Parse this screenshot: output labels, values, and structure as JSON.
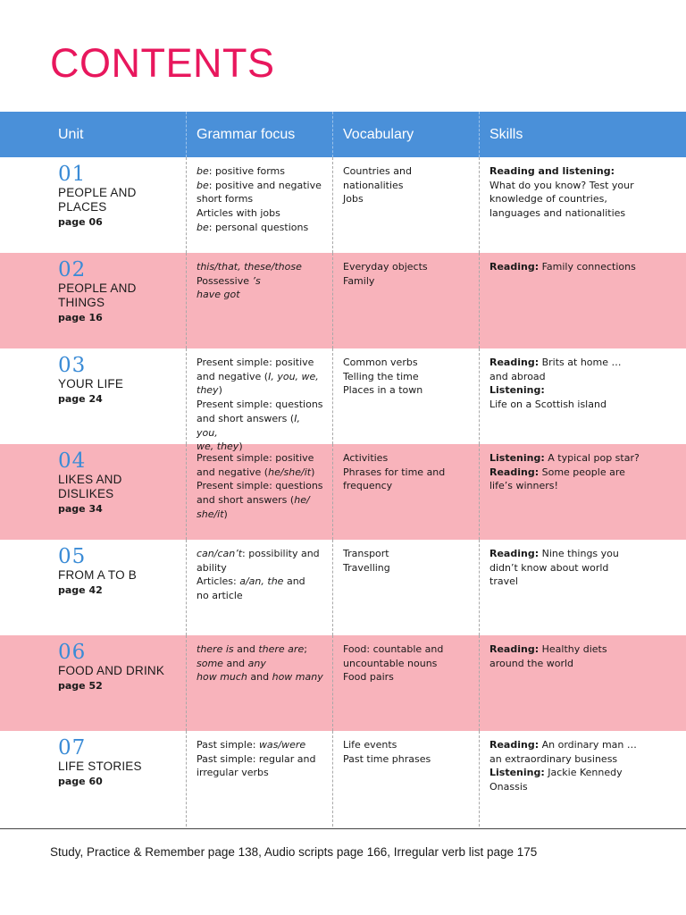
{
  "title": "CONTENTS",
  "colors": {
    "title": "#e8175d",
    "header": "#4a90d9",
    "pink_row": "#f8b3bb",
    "unit_number": "#3a8bd6"
  },
  "headers": {
    "unit": "Unit",
    "grammar": "Grammar focus",
    "vocabulary": "Vocabulary",
    "skills": "Skills"
  },
  "units": [
    {
      "number": "01",
      "name": "PEOPLE AND PLACES",
      "page": "page 06",
      "pink": false,
      "grammar": [
        [
          {
            "t": "be",
            "i": true
          },
          {
            "t": ": positive forms"
          }
        ],
        [
          {
            "t": "be",
            "i": true
          },
          {
            "t": ": positive and negative"
          }
        ],
        [
          {
            "t": "short forms"
          }
        ],
        [
          {
            "t": "Articles with jobs"
          }
        ],
        [
          {
            "t": "be",
            "i": true
          },
          {
            "t": ": personal questions"
          }
        ]
      ],
      "vocabulary": [
        [
          {
            "t": "Countries and nationalities"
          }
        ],
        [
          {
            "t": "Jobs"
          }
        ]
      ],
      "skills": [
        [
          {
            "t": "Reading and listening:",
            "b": true
          }
        ],
        [
          {
            "t": "What do you know? Test your"
          }
        ],
        [
          {
            "t": "knowledge of countries,"
          }
        ],
        [
          {
            "t": "languages and nationalities"
          }
        ]
      ]
    },
    {
      "number": "02",
      "name": "PEOPLE AND THINGS",
      "page": "page 16",
      "pink": true,
      "grammar": [
        [
          {
            "t": "this/that, these/those",
            "i": true
          }
        ],
        [
          {
            "t": "Possessive "
          },
          {
            "t": "’s",
            "i": true
          }
        ],
        [
          {
            "t": "have got",
            "i": true
          }
        ]
      ],
      "vocabulary": [
        [
          {
            "t": "Everyday objects"
          }
        ],
        [
          {
            "t": "Family"
          }
        ]
      ],
      "skills": [
        [
          {
            "t": "Reading:",
            "b": true
          },
          {
            "t": " Family connections"
          }
        ]
      ]
    },
    {
      "number": "03",
      "name": "YOUR LIFE",
      "page": "page 24",
      "pink": false,
      "grammar": [
        [
          {
            "t": "Present simple: positive"
          }
        ],
        [
          {
            "t": "and negative ("
          },
          {
            "t": "I, you, we,",
            "i": true
          }
        ],
        [
          {
            "t": "they",
            "i": true
          },
          {
            "t": ")"
          }
        ],
        [
          {
            "t": "Present simple: questions"
          }
        ],
        [
          {
            "t": "and short answers ("
          },
          {
            "t": "I, you,",
            "i": true
          }
        ],
        [
          {
            "t": "we, they",
            "i": true
          },
          {
            "t": ")"
          }
        ]
      ],
      "vocabulary": [
        [
          {
            "t": "Common verbs"
          }
        ],
        [
          {
            "t": "Telling the time"
          }
        ],
        [
          {
            "t": "Places in a town"
          }
        ]
      ],
      "skills": [
        [
          {
            "t": "Reading:",
            "b": true
          },
          {
            "t": " Brits at home …"
          }
        ],
        [
          {
            "t": "and abroad"
          }
        ],
        [
          {
            "t": "Listening:",
            "b": true
          }
        ],
        [
          {
            "t": "Life on a Scottish island"
          }
        ]
      ]
    },
    {
      "number": "04",
      "name": "LIKES AND DISLIKES",
      "page": "page 34",
      "pink": true,
      "grammar": [
        [
          {
            "t": "Present simple: positive"
          }
        ],
        [
          {
            "t": "and negative ("
          },
          {
            "t": "he/she/it",
            "i": true
          },
          {
            "t": ")"
          }
        ],
        [
          {
            "t": "Present simple: questions"
          }
        ],
        [
          {
            "t": "and short answers ("
          },
          {
            "t": "he/",
            "i": true
          }
        ],
        [
          {
            "t": "she/it",
            "i": true
          },
          {
            "t": ")"
          }
        ]
      ],
      "vocabulary": [
        [
          {
            "t": "Activities"
          }
        ],
        [
          {
            "t": "Phrases for time and"
          }
        ],
        [
          {
            "t": "frequency"
          }
        ]
      ],
      "skills": [
        [
          {
            "t": "Listening:",
            "b": true
          },
          {
            "t": " A typical pop star?"
          }
        ],
        [
          {
            "t": "Reading:",
            "b": true
          },
          {
            "t": " Some people are"
          }
        ],
        [
          {
            "t": "life’s winners!"
          }
        ]
      ]
    },
    {
      "number": "05",
      "name": "FROM A TO B",
      "page": "page 42",
      "pink": false,
      "grammar": [
        [
          {
            "t": "can/can’t",
            "i": true
          },
          {
            "t": ": possibility and"
          }
        ],
        [
          {
            "t": "ability"
          }
        ],
        [
          {
            "t": "Articles: "
          },
          {
            "t": "a/an, the",
            "i": true
          },
          {
            "t": " and"
          }
        ],
        [
          {
            "t": "no article"
          }
        ]
      ],
      "vocabulary": [
        [
          {
            "t": "Transport"
          }
        ],
        [
          {
            "t": "Travelling"
          }
        ]
      ],
      "skills": [
        [
          {
            "t": "Reading:",
            "b": true
          },
          {
            "t": " Nine things you"
          }
        ],
        [
          {
            "t": "didn’t know about world"
          }
        ],
        [
          {
            "t": "travel"
          }
        ]
      ]
    },
    {
      "number": "06",
      "name": "FOOD AND DRINK",
      "page": "page 52",
      "pink": true,
      "grammar": [
        [
          {
            "t": "there is",
            "i": true
          },
          {
            "t": " and "
          },
          {
            "t": "there are",
            "i": true
          },
          {
            "t": ";"
          }
        ],
        [
          {
            "t": "some",
            "i": true
          },
          {
            "t": " and "
          },
          {
            "t": "any",
            "i": true
          }
        ],
        [
          {
            "t": "how much",
            "i": true
          },
          {
            "t": " and "
          },
          {
            "t": "how many",
            "i": true
          }
        ]
      ],
      "vocabulary": [
        [
          {
            "t": "Food: countable and"
          }
        ],
        [
          {
            "t": "uncountable nouns"
          }
        ],
        [
          {
            "t": "Food pairs"
          }
        ]
      ],
      "skills": [
        [
          {
            "t": "Reading:",
            "b": true
          },
          {
            "t": " Healthy diets"
          }
        ],
        [
          {
            "t": "around the world"
          }
        ]
      ]
    },
    {
      "number": "07",
      "name": "LIFE STORIES",
      "page": "page 60",
      "pink": false,
      "grammar": [
        [
          {
            "t": "Past simple: "
          },
          {
            "t": "was/were",
            "i": true
          }
        ],
        [
          {
            "t": "Past simple: regular and"
          }
        ],
        [
          {
            "t": "irregular verbs"
          }
        ]
      ],
      "vocabulary": [
        [
          {
            "t": "Life events"
          }
        ],
        [
          {
            "t": "Past time phrases"
          }
        ]
      ],
      "skills": [
        [
          {
            "t": "Reading:",
            "b": true
          },
          {
            "t": " An ordinary man …"
          }
        ],
        [
          {
            "t": "an extraordinary business"
          }
        ],
        [
          {
            "t": "Listening:",
            "b": true
          },
          {
            "t": " Jackie Kennedy"
          }
        ],
        [
          {
            "t": "Onassis"
          }
        ]
      ]
    }
  ],
  "footer": "Study, Practice & Remember page 138, Audio scripts page 166, Irregular verb list page 175"
}
